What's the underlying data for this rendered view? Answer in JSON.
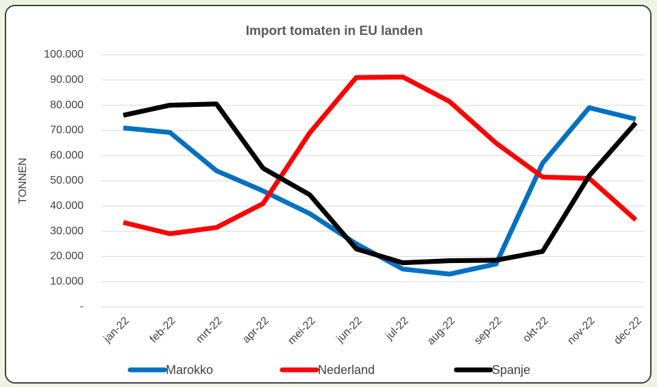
{
  "chart_data": {
    "type": "line",
    "title": "Import tomaten in EU landen",
    "y_label": "TONNEN",
    "categories": [
      "jan-22",
      "feb-22",
      "mrt-22",
      "apr-22",
      "mei-22",
      "jun-22",
      "jul-22",
      "aug-22",
      "sep-22",
      "okt-22",
      "nov-22",
      "dec-22"
    ],
    "series": [
      {
        "name": "Marokko",
        "color": "#0070c0",
        "values": [
          71000,
          69200,
          54000,
          46000,
          37000,
          25000,
          15000,
          13000,
          17000,
          57000,
          79000,
          74500
        ]
      },
      {
        "name": "Nederland",
        "color": "#ff0000",
        "values": [
          33500,
          29000,
          31500,
          41000,
          69000,
          91000,
          91200,
          81500,
          65000,
          51500,
          51000,
          34500
        ]
      },
      {
        "name": "Spanje",
        "color": "#000000",
        "values": [
          76000,
          80000,
          80500,
          55000,
          44500,
          23000,
          17500,
          18300,
          18500,
          22000,
          52000,
          73000
        ]
      }
    ],
    "ylim": [
      0,
      100000
    ],
    "yticks": [
      {
        "value": 0,
        "label": "-"
      },
      {
        "value": 10000,
        "label": "10.000"
      },
      {
        "value": 20000,
        "label": "20.000"
      },
      {
        "value": 30000,
        "label": "30.000"
      },
      {
        "value": 40000,
        "label": "40.000"
      },
      {
        "value": 50000,
        "label": "50.000"
      },
      {
        "value": 60000,
        "label": "60.000"
      },
      {
        "value": 70000,
        "label": "70.000"
      },
      {
        "value": 80000,
        "label": "80.000"
      },
      {
        "value": 90000,
        "label": "90.000"
      },
      {
        "value": 100000,
        "label": "100.000"
      }
    ],
    "grid": true,
    "legend": "bottom"
  }
}
